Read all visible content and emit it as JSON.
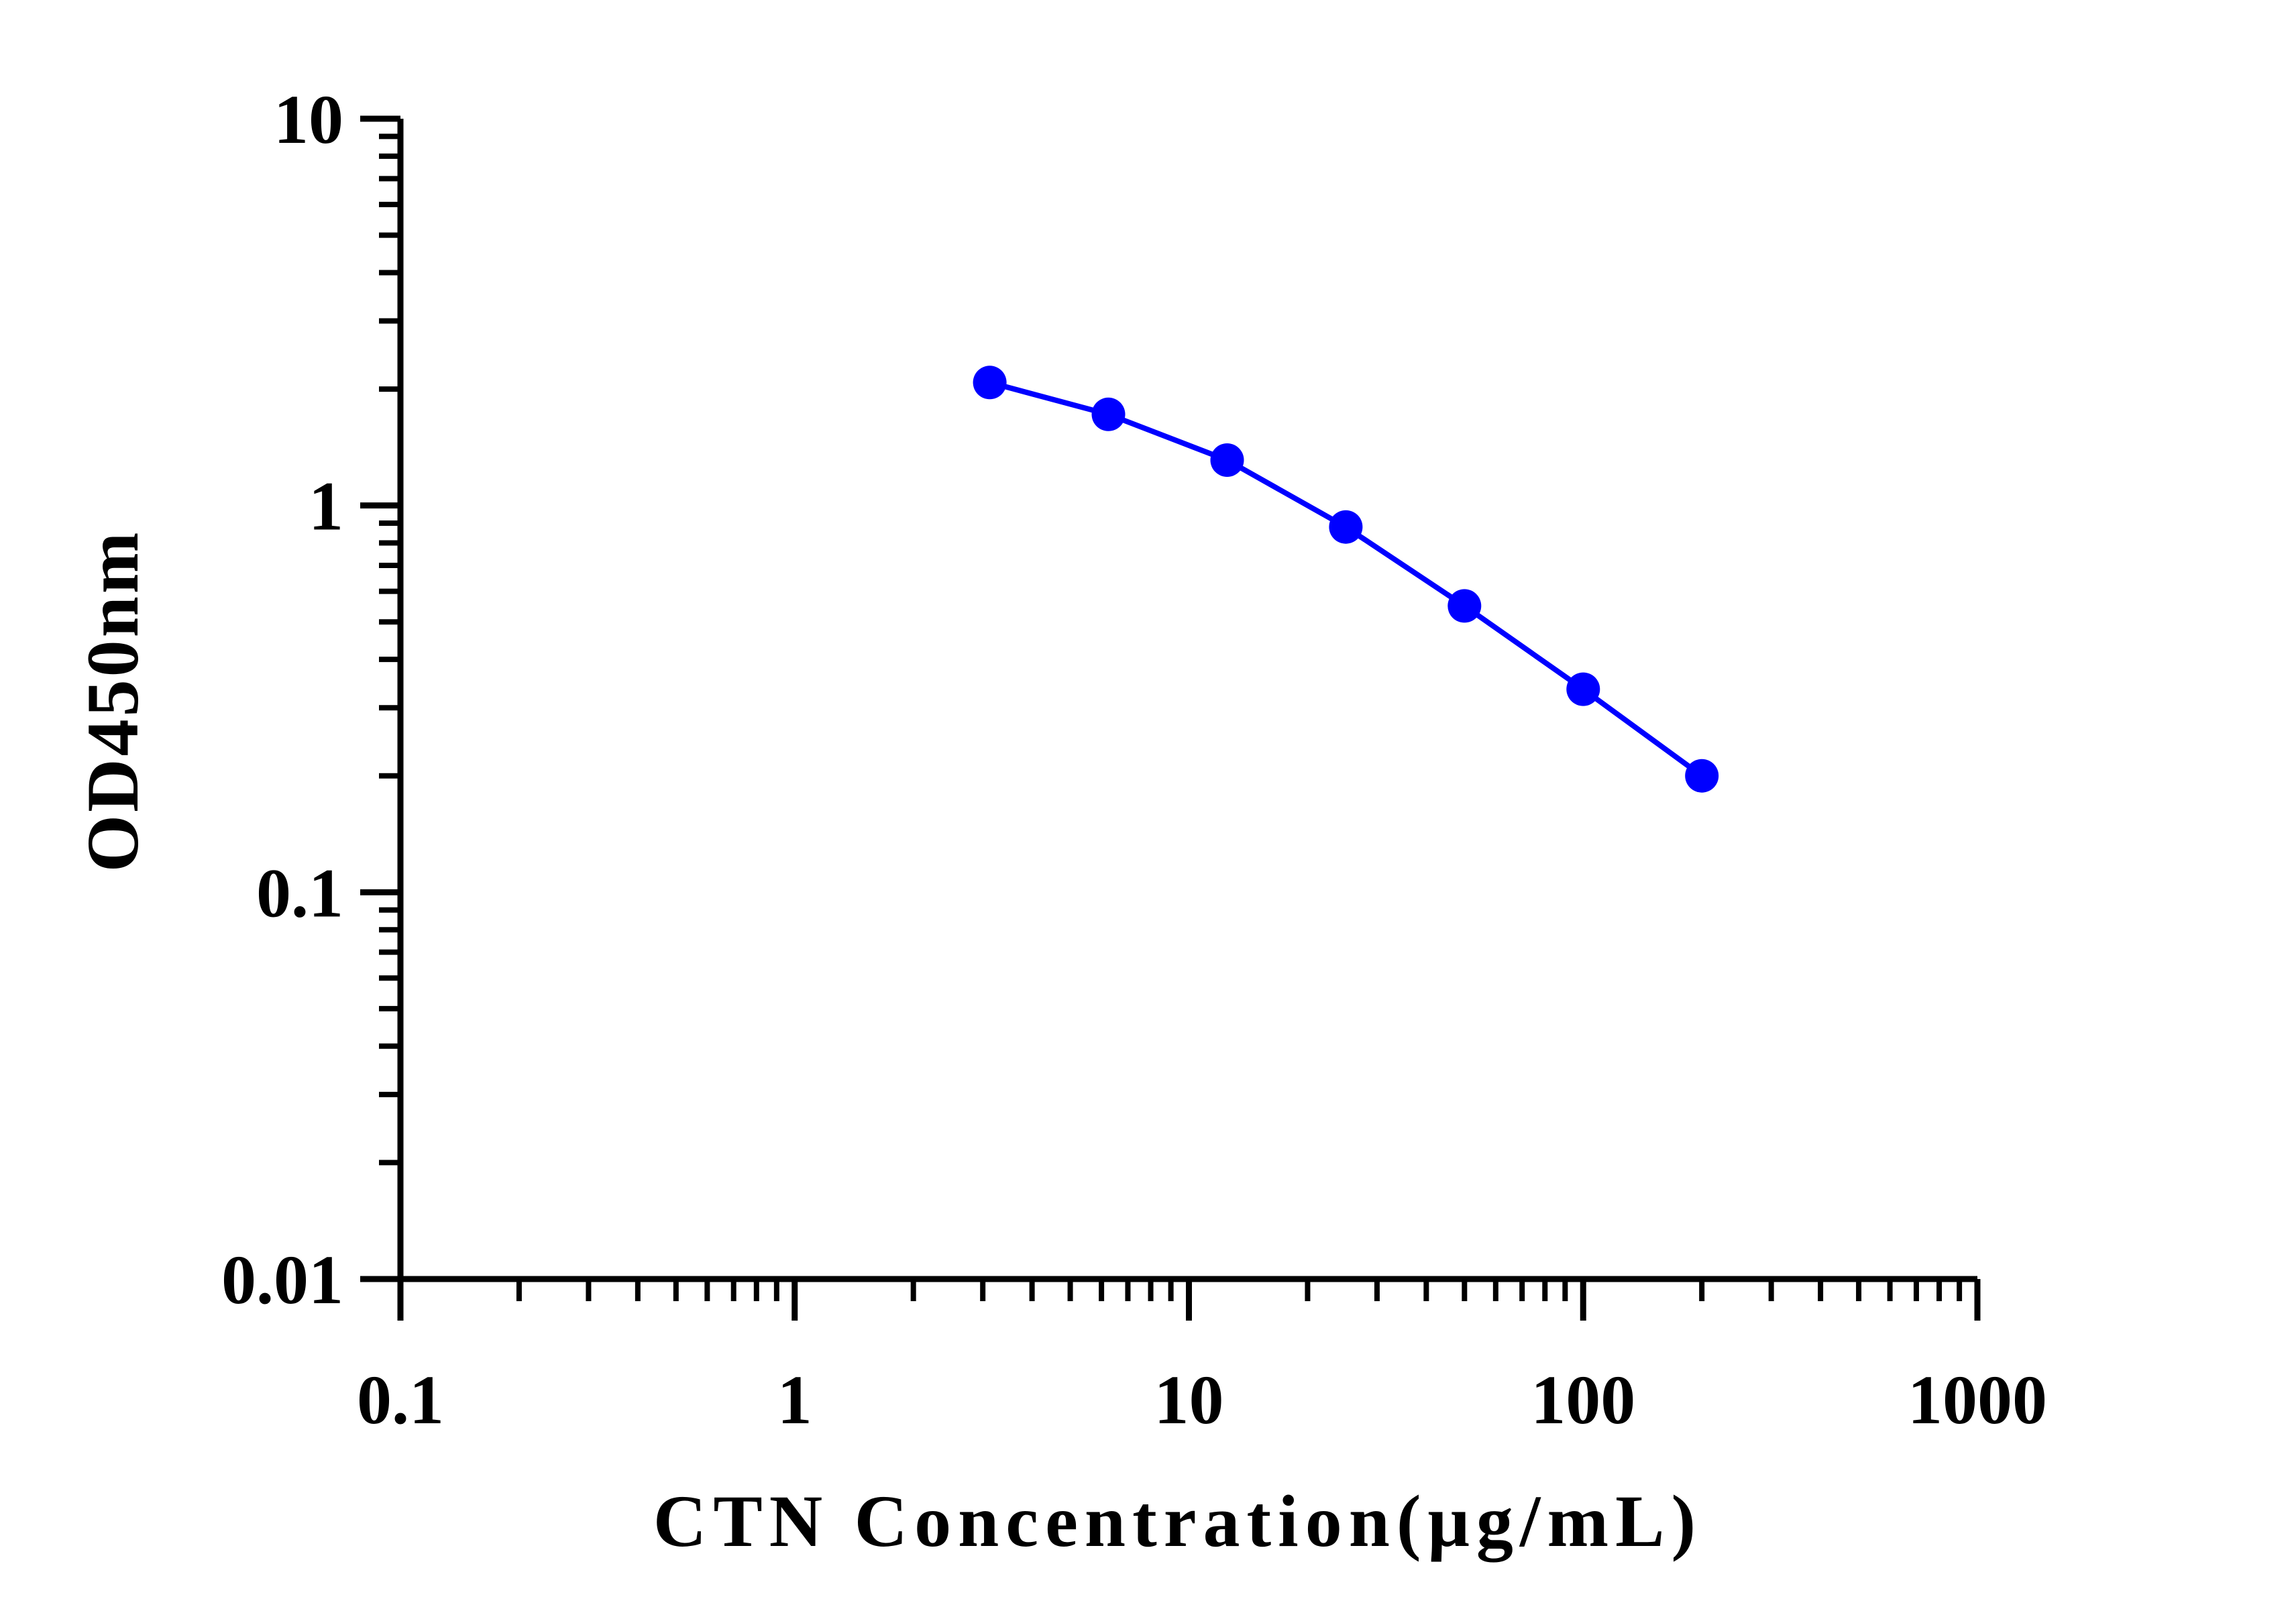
{
  "chart_data": {
    "type": "line",
    "title": "",
    "xlabel": "CTN Concentration(μg/mL)",
    "ylabel": "OD450nm",
    "x_scale": "log",
    "y_scale": "log",
    "xlim": [
      0.1,
      1000
    ],
    "ylim": [
      0.01,
      10
    ],
    "x_ticks": [
      "0.1",
      "1",
      "10",
      "100",
      "1000"
    ],
    "y_ticks": [
      "0.01",
      "0.1",
      "1",
      "10"
    ],
    "grid": false,
    "legend": "none",
    "series": [
      {
        "color": "#0000ff",
        "x": [
          3.125,
          6.25,
          12.5,
          25,
          50,
          100,
          200
        ],
        "y": [
          2.08,
          1.72,
          1.31,
          0.88,
          0.55,
          0.335,
          0.2
        ]
      }
    ]
  }
}
